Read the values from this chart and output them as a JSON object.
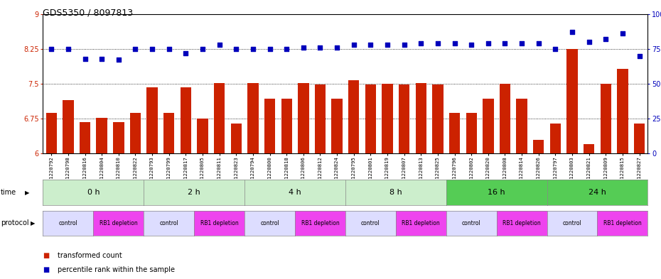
{
  "title": "GDS5350 / 8097813",
  "samples": [
    "GSM1220792",
    "GSM1220798",
    "GSM1220816",
    "GSM1220804",
    "GSM1220810",
    "GSM1220822",
    "GSM1220793",
    "GSM1220799",
    "GSM1220817",
    "GSM1220805",
    "GSM1220811",
    "GSM1220823",
    "GSM1220794",
    "GSM1220800",
    "GSM1220818",
    "GSM1220806",
    "GSM1220812",
    "GSM1220824",
    "GSM1220795",
    "GSM1220801",
    "GSM1220819",
    "GSM1220807",
    "GSM1220813",
    "GSM1220825",
    "GSM1220796",
    "GSM1220802",
    "GSM1220820",
    "GSM1220808",
    "GSM1220814",
    "GSM1220826",
    "GSM1220797",
    "GSM1220803",
    "GSM1220821",
    "GSM1220809",
    "GSM1220815",
    "GSM1220827"
  ],
  "bar_values": [
    6.87,
    7.15,
    6.67,
    6.77,
    6.68,
    6.88,
    7.42,
    6.88,
    7.42,
    6.75,
    7.52,
    6.65,
    7.52,
    7.18,
    7.18,
    7.52,
    7.48,
    7.18,
    7.58,
    7.48,
    7.5,
    7.48,
    7.52,
    7.48,
    6.88,
    6.88,
    7.18,
    7.5,
    7.18,
    6.3,
    6.65,
    8.25,
    6.2,
    7.5,
    7.82,
    6.65
  ],
  "dot_values_pct": [
    75,
    75,
    68,
    68,
    67,
    75,
    75,
    75,
    72,
    75,
    78,
    75,
    75,
    75,
    75,
    76,
    76,
    76,
    78,
    78,
    78,
    78,
    79,
    79,
    79,
    78,
    79,
    79,
    79,
    79,
    75,
    87,
    80,
    82,
    86,
    70
  ],
  "time_groups": [
    {
      "label": "0 h",
      "start": 0,
      "end": 6,
      "color": "#cceecc"
    },
    {
      "label": "2 h",
      "start": 6,
      "end": 12,
      "color": "#cceecc"
    },
    {
      "label": "4 h",
      "start": 12,
      "end": 18,
      "color": "#cceecc"
    },
    {
      "label": "8 h",
      "start": 18,
      "end": 24,
      "color": "#cceecc"
    },
    {
      "label": "16 h",
      "start": 24,
      "end": 30,
      "color": "#55cc55"
    },
    {
      "label": "24 h",
      "start": 30,
      "end": 36,
      "color": "#55cc55"
    }
  ],
  "protocol_groups": [
    {
      "label": "control",
      "start": 0,
      "end": 3,
      "color": "#ddddff"
    },
    {
      "label": "RB1 depletion",
      "start": 3,
      "end": 6,
      "color": "#ee44ee"
    },
    {
      "label": "control",
      "start": 6,
      "end": 9,
      "color": "#ddddff"
    },
    {
      "label": "RB1 depletion",
      "start": 9,
      "end": 12,
      "color": "#ee44ee"
    },
    {
      "label": "control",
      "start": 12,
      "end": 15,
      "color": "#ddddff"
    },
    {
      "label": "RB1 depletion",
      "start": 15,
      "end": 18,
      "color": "#ee44ee"
    },
    {
      "label": "control",
      "start": 18,
      "end": 21,
      "color": "#ddddff"
    },
    {
      "label": "RB1 depletion",
      "start": 21,
      "end": 24,
      "color": "#ee44ee"
    },
    {
      "label": "control",
      "start": 24,
      "end": 27,
      "color": "#ddddff"
    },
    {
      "label": "RB1 depletion",
      "start": 27,
      "end": 30,
      "color": "#ee44ee"
    },
    {
      "label": "control",
      "start": 30,
      "end": 33,
      "color": "#ddddff"
    },
    {
      "label": "RB1 depletion",
      "start": 33,
      "end": 36,
      "color": "#ee44ee"
    }
  ],
  "ylim_left": [
    6.0,
    9.0
  ],
  "ylim_right": [
    0,
    100
  ],
  "yticks_left": [
    6.0,
    6.75,
    7.5,
    8.25,
    9.0
  ],
  "yticks_right": [
    0,
    25,
    50,
    75,
    100
  ],
  "bar_color": "#cc2200",
  "dot_color": "#0000bb",
  "bg_color": "#ffffff",
  "label_color_left": "#cc2200",
  "label_color_right": "#0000bb",
  "grid_color": "#000000"
}
